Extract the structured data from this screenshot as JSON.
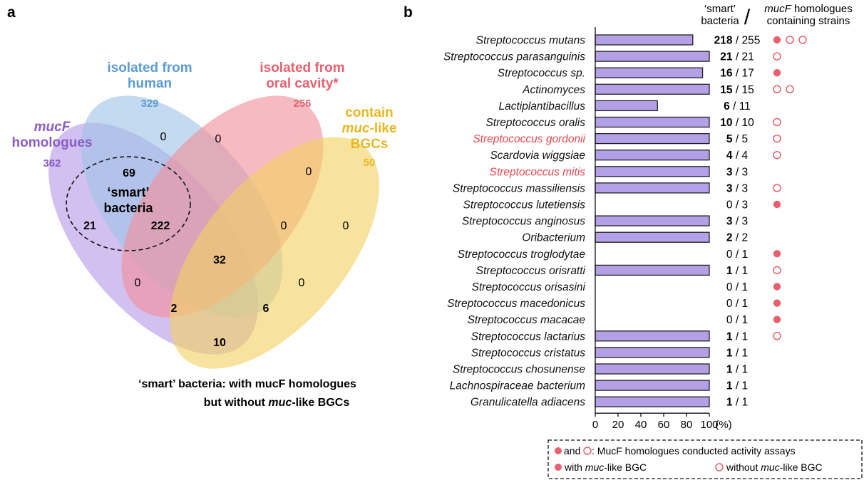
{
  "panel_a": {
    "label": "a",
    "sets": [
      {
        "title_lines": [
          "mucF",
          "homologues"
        ],
        "count": "362",
        "color": "#8a5cc8",
        "fill": "#b79be6"
      },
      {
        "title_lines": [
          "isolated from",
          "human"
        ],
        "count": "329",
        "color": "#5b9bd5",
        "fill": "#9ec3e6"
      },
      {
        "title_lines": [
          "isolated from",
          "oral cavity*"
        ],
        "count": "256",
        "color": "#e8606e",
        "fill": "#f2909a"
      },
      {
        "title_lines": [
          "contain",
          "muc-like",
          "BGCs"
        ],
        "count": "50",
        "color": "#e8b820",
        "fill": "#f2d062"
      }
    ],
    "regions": [
      {
        "value": "0",
        "bold": false
      },
      {
        "value": "69",
        "bold": true
      },
      {
        "value": "0",
        "bold": false
      },
      {
        "value": "0",
        "bold": false
      },
      {
        "value": "21",
        "bold": true
      },
      {
        "value": "222",
        "bold": true
      },
      {
        "value": "0",
        "bold": false
      },
      {
        "value": "0",
        "bold": false
      },
      {
        "value": "32",
        "bold": true
      },
      {
        "value": "0",
        "bold": false
      },
      {
        "value": "0",
        "bold": false
      },
      {
        "value": "2",
        "bold": true
      },
      {
        "value": "6",
        "bold": true
      },
      {
        "value": "10",
        "bold": true
      }
    ],
    "smart_label": [
      "‘smart’",
      "bacteria"
    ],
    "caption_line1": "‘smart’ bacteria: with mucF homologues",
    "caption_line2_pre": "but without ",
    "caption_line2_italic": "muc",
    "caption_line2_post": "-like BGCs"
  },
  "panel_b": {
    "label": "b",
    "header_left": [
      "‘smart’",
      "bacteria"
    ],
    "header_slash": "/",
    "header_right_italic": "mucF",
    "header_right_rest": " homologues",
    "header_right_line2": "containing strains",
    "xunit": "(%)",
    "legend": {
      "line1_and": "and",
      "line1_text": ": MucF homologues conducted activity assays",
      "filled_label_pre": "with ",
      "filled_label_italic": "muc",
      "filled_label_post": "-like BGC",
      "open_label_pre": "without ",
      "open_label_italic": "muc",
      "open_label_post": "-like BGC"
    },
    "colors": {
      "bar": "#b3a0e6",
      "bar_edge": "#222222",
      "red": "#e8474f",
      "marker": "#e8606e"
    }
  },
  "chart_data": {
    "type": "bar",
    "orientation": "horizontal",
    "xlim": [
      0,
      100
    ],
    "xticks": [
      0,
      20,
      40,
      60,
      80,
      100
    ],
    "categories": [
      {
        "name": "Streptococcus mutans",
        "red": false,
        "smart": 218,
        "total": 255,
        "value": 85.5,
        "markers": [
          "filled",
          "open",
          "open"
        ]
      },
      {
        "name": "Streptococcus parasanguinis",
        "red": false,
        "smart": 21,
        "total": 21,
        "value": 100,
        "markers": [
          "open"
        ]
      },
      {
        "name": "Streptococcus sp.",
        "red": false,
        "smart": 16,
        "total": 17,
        "value": 94.1,
        "markers": [
          "filled"
        ]
      },
      {
        "name": "Actinomyces",
        "red": false,
        "smart": 15,
        "total": 15,
        "value": 100,
        "markers": [
          "open",
          "open"
        ]
      },
      {
        "name": "Lactiplantibacillus",
        "red": false,
        "smart": 6,
        "total": 11,
        "value": 54.5,
        "markers": []
      },
      {
        "name": "Streptococcus oralis",
        "red": false,
        "smart": 10,
        "total": 10,
        "value": 100,
        "markers": [
          "open"
        ]
      },
      {
        "name": "Streptococcus gordonii",
        "red": true,
        "smart": 5,
        "total": 5,
        "value": 100,
        "markers": [
          "open"
        ]
      },
      {
        "name": "Scardovia wiggsiae",
        "red": false,
        "smart": 4,
        "total": 4,
        "value": 100,
        "markers": [
          "open"
        ]
      },
      {
        "name": "Streptococcus mitis",
        "red": true,
        "smart": 3,
        "total": 3,
        "value": 100,
        "markers": []
      },
      {
        "name": "Streptococcus massiliensis",
        "red": false,
        "smart": 3,
        "total": 3,
        "value": 100,
        "markers": [
          "open"
        ]
      },
      {
        "name": "Streptococcus lutetiensis",
        "red": false,
        "smart": 0,
        "total": 3,
        "value": 0,
        "markers": [
          "filled"
        ]
      },
      {
        "name": "Streptococcus anginosus",
        "red": false,
        "smart": 3,
        "total": 3,
        "value": 100,
        "markers": []
      },
      {
        "name": "Oribacterium",
        "red": false,
        "smart": 2,
        "total": 2,
        "value": 100,
        "markers": []
      },
      {
        "name": "Streptococcus troglodytae",
        "red": false,
        "smart": 0,
        "total": 1,
        "value": 0,
        "markers": [
          "filled"
        ]
      },
      {
        "name": "Streptococcus orisratti",
        "red": false,
        "smart": 1,
        "total": 1,
        "value": 100,
        "markers": [
          "open"
        ]
      },
      {
        "name": "Streptococcus orisasini",
        "red": false,
        "smart": 0,
        "total": 1,
        "value": 0,
        "markers": [
          "filled"
        ]
      },
      {
        "name": "Streptococcus macedonicus",
        "red": false,
        "smart": 0,
        "total": 1,
        "value": 0,
        "markers": [
          "filled"
        ]
      },
      {
        "name": "Streptococcus macacae",
        "red": false,
        "smart": 0,
        "total": 1,
        "value": 0,
        "markers": [
          "filled"
        ]
      },
      {
        "name": "Streptococcus lactarius",
        "red": false,
        "smart": 1,
        "total": 1,
        "value": 100,
        "markers": [
          "open"
        ]
      },
      {
        "name": "Streptococcus cristatus",
        "red": false,
        "smart": 1,
        "total": 1,
        "value": 100,
        "markers": []
      },
      {
        "name": "Streptococcus chosunense",
        "red": false,
        "smart": 1,
        "total": 1,
        "value": 100,
        "markers": []
      },
      {
        "name": "Lachnospiraceae bacterium",
        "red": false,
        "smart": 1,
        "total": 1,
        "value": 100,
        "markers": []
      },
      {
        "name": "Granulicatella adiacens",
        "red": false,
        "smart": 1,
        "total": 1,
        "value": 100,
        "markers": []
      }
    ]
  }
}
